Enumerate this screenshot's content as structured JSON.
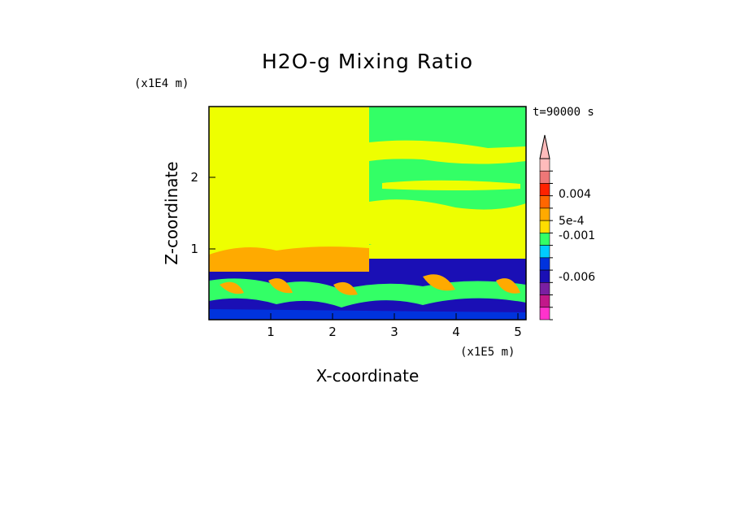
{
  "chart_data": {
    "type": "heatmap",
    "title": "H2O-g Mixing Ratio",
    "xlabel": "X-coordinate",
    "ylabel": "Z-coordinate",
    "x_unit": "(x1E5 m)",
    "y_unit": "(x1E4 m)",
    "time_label": "t=90000 s",
    "xlim": [
      0,
      5.15
    ],
    "ylim": [
      0,
      2.95
    ],
    "x_ticks": [
      "1",
      "2",
      "3",
      "4",
      "5"
    ],
    "y_ticks": [
      "1",
      "2"
    ],
    "colorbar": {
      "colors": [
        "#ff33cc",
        "#c2188a",
        "#7a1fa2",
        "#1a0fb5",
        "#0033dd",
        "#00ccff",
        "#33ff66",
        "#ffdd00",
        "#ffaa00",
        "#ff6600",
        "#ff2200",
        "#ee7777",
        "#ffbbbb"
      ],
      "labels": [
        "0.004",
        "5e-4",
        "-0.001",
        "-0.006"
      ],
      "extend": "max"
    }
  }
}
